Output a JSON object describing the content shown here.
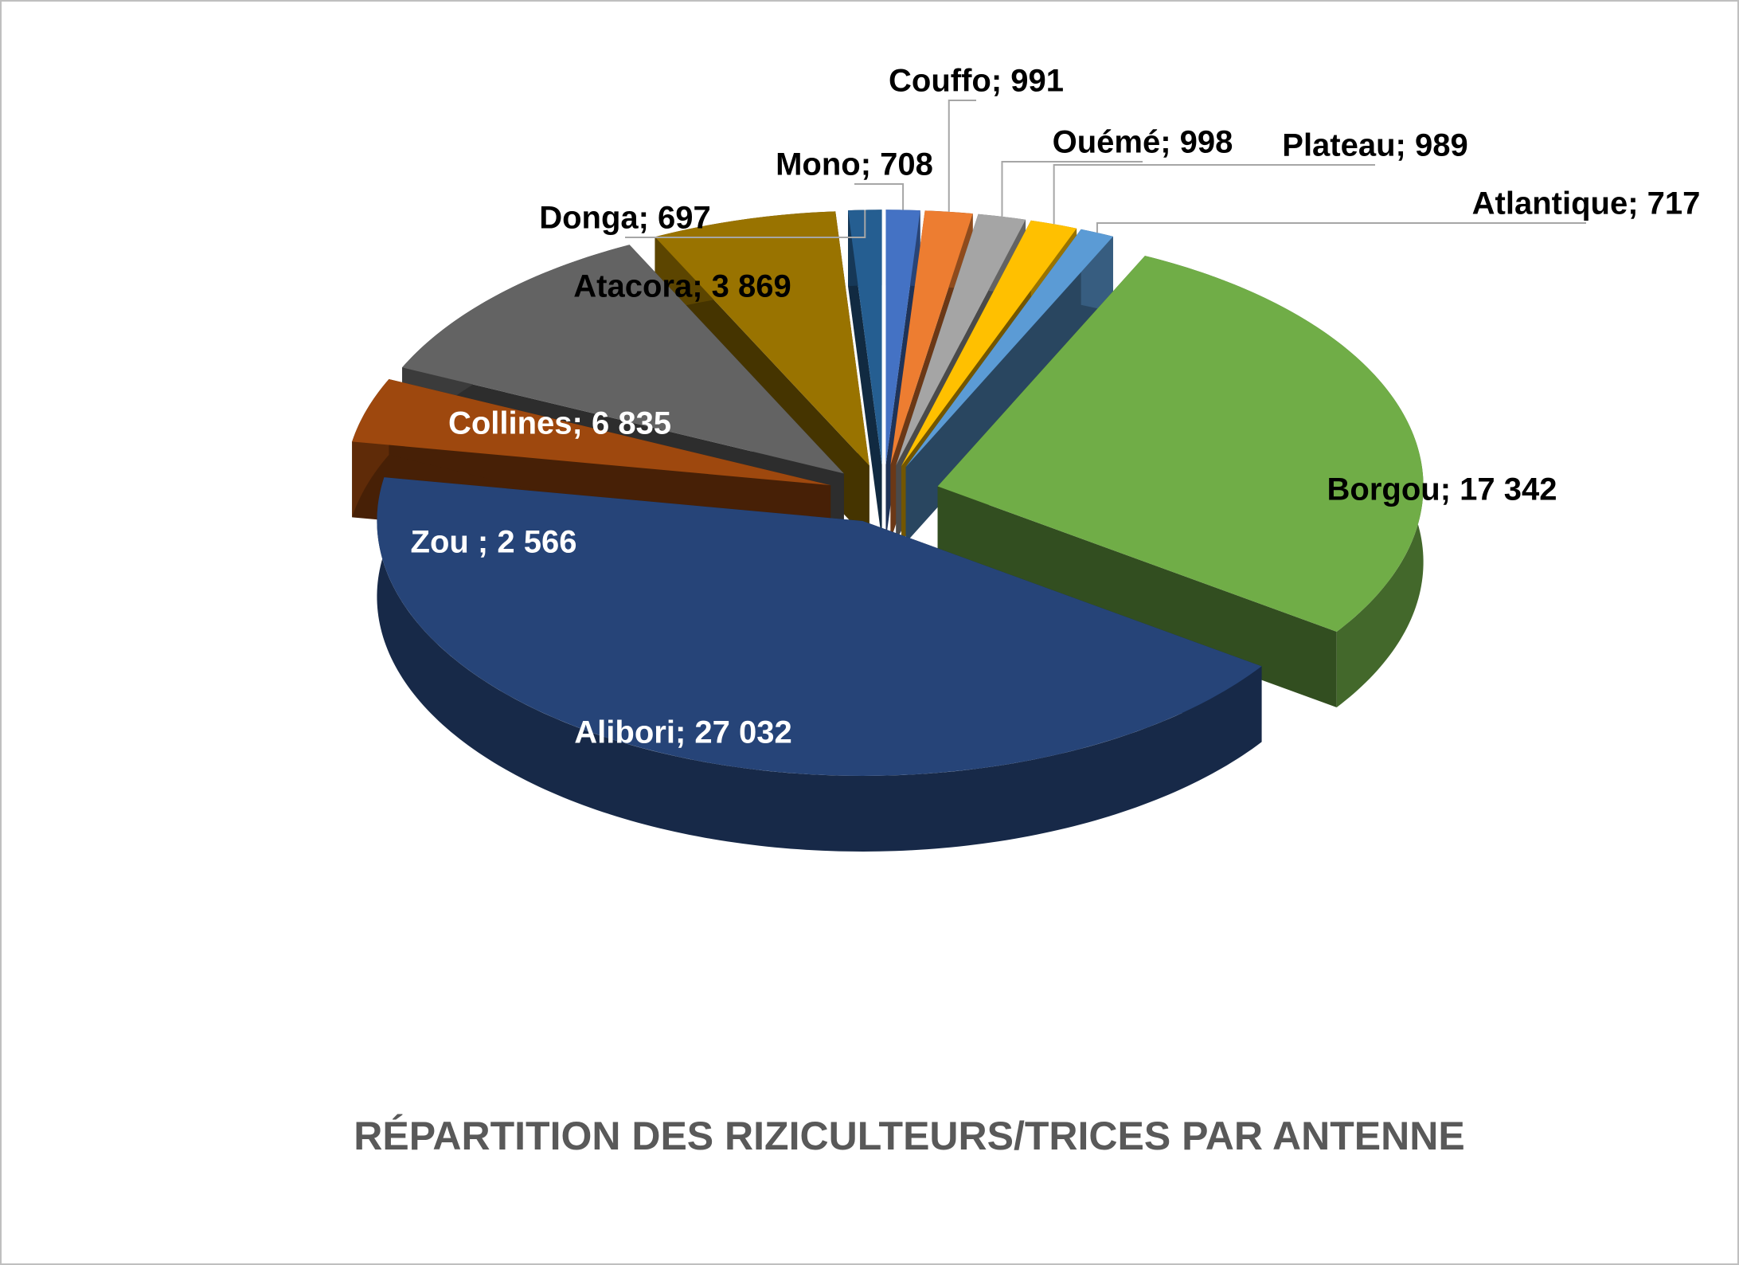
{
  "chart_data": {
    "type": "pie",
    "title": "RÉPARTITION DES RIZICULTEURS/TRICES PAR ANTENNE",
    "values": [
      708,
      991,
      998,
      989,
      717,
      17342,
      27032,
      2566,
      6835,
      3869,
      697
    ],
    "value_labels": [
      "Mono; 708",
      "Couffo; 991",
      "Ouémé; 998",
      "Plateau; 989",
      "Atlantique; 717",
      "Borgou; 17 342",
      "Alibori; 27 032",
      "Zou ; 2 566",
      "Collines; 6 835",
      "Atacora; 3 869",
      "Donga; 697"
    ],
    "colors": [
      "#4472c4",
      "#ed7d31",
      "#a5a5a5",
      "#ffc000",
      "#5b9bd5",
      "#70ad47",
      "#264478",
      "#9e480e",
      "#636363",
      "#997300",
      "#255e91"
    ]
  }
}
